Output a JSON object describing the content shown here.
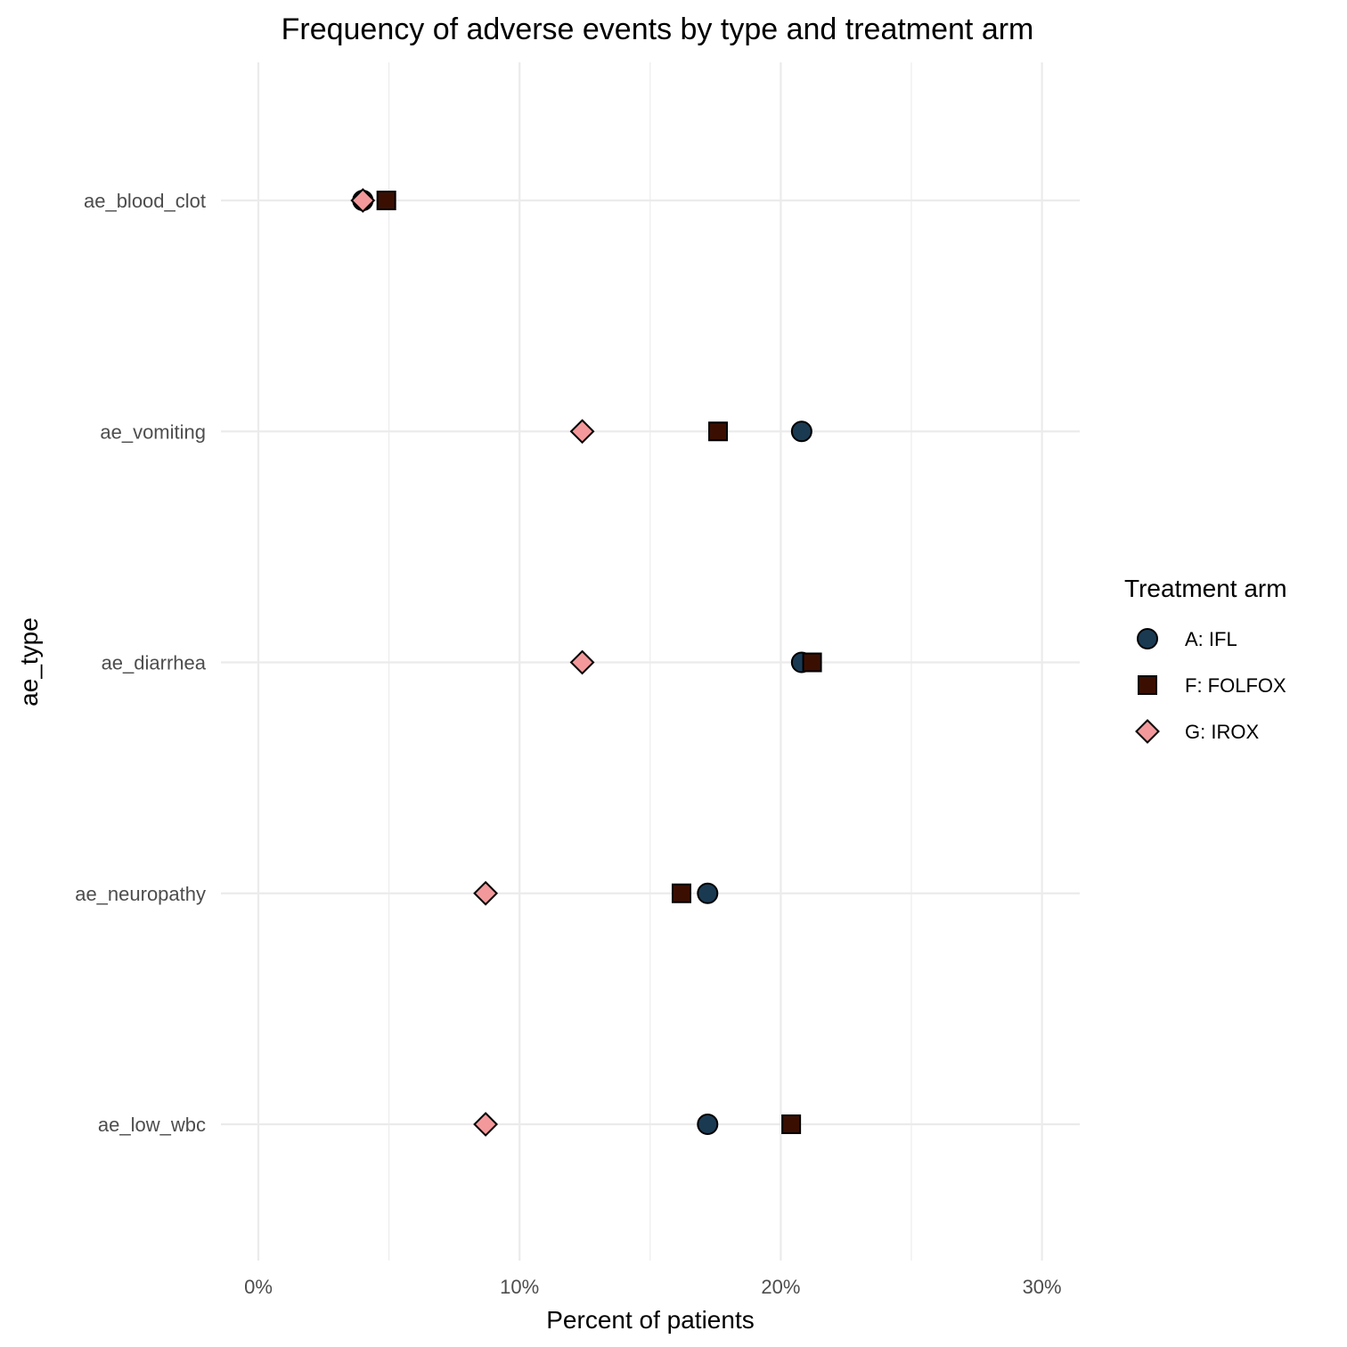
{
  "chart_data": {
    "type": "scatter",
    "title": "Frequency of adverse events by type and treatment arm",
    "xlabel": "Percent of patients",
    "ylabel": "ae_type",
    "xlim": [
      0,
      0.31
    ],
    "x_ticks": [
      {
        "value": 0,
        "label": "0%"
      },
      {
        "value": 0.1,
        "label": "10%"
      },
      {
        "value": 0.2,
        "label": "20%"
      },
      {
        "value": 0.3,
        "label": "30%"
      }
    ],
    "x_minor_ticks": [
      0.05,
      0.15,
      0.25
    ],
    "categories": [
      "ae_blood_clot",
      "ae_vomiting",
      "ae_diarrhea",
      "ae_neuropathy",
      "ae_low_wbc"
    ],
    "grid": true,
    "legend": {
      "title": "Treatment arm",
      "position": "right"
    },
    "series": [
      {
        "name": "A: IFL",
        "shape": "circle",
        "color": "#1a3a52",
        "values": [
          0.04,
          0.208,
          0.208,
          0.172,
          0.172
        ]
      },
      {
        "name": "F: FOLFOX",
        "shape": "square",
        "color": "#3a0f02",
        "values": [
          0.049,
          0.176,
          0.212,
          0.162,
          0.204
        ]
      },
      {
        "name": "G: IROX",
        "shape": "diamond",
        "color": "#f4999b",
        "values": [
          0.04,
          0.124,
          0.124,
          0.087,
          0.087
        ]
      }
    ]
  }
}
